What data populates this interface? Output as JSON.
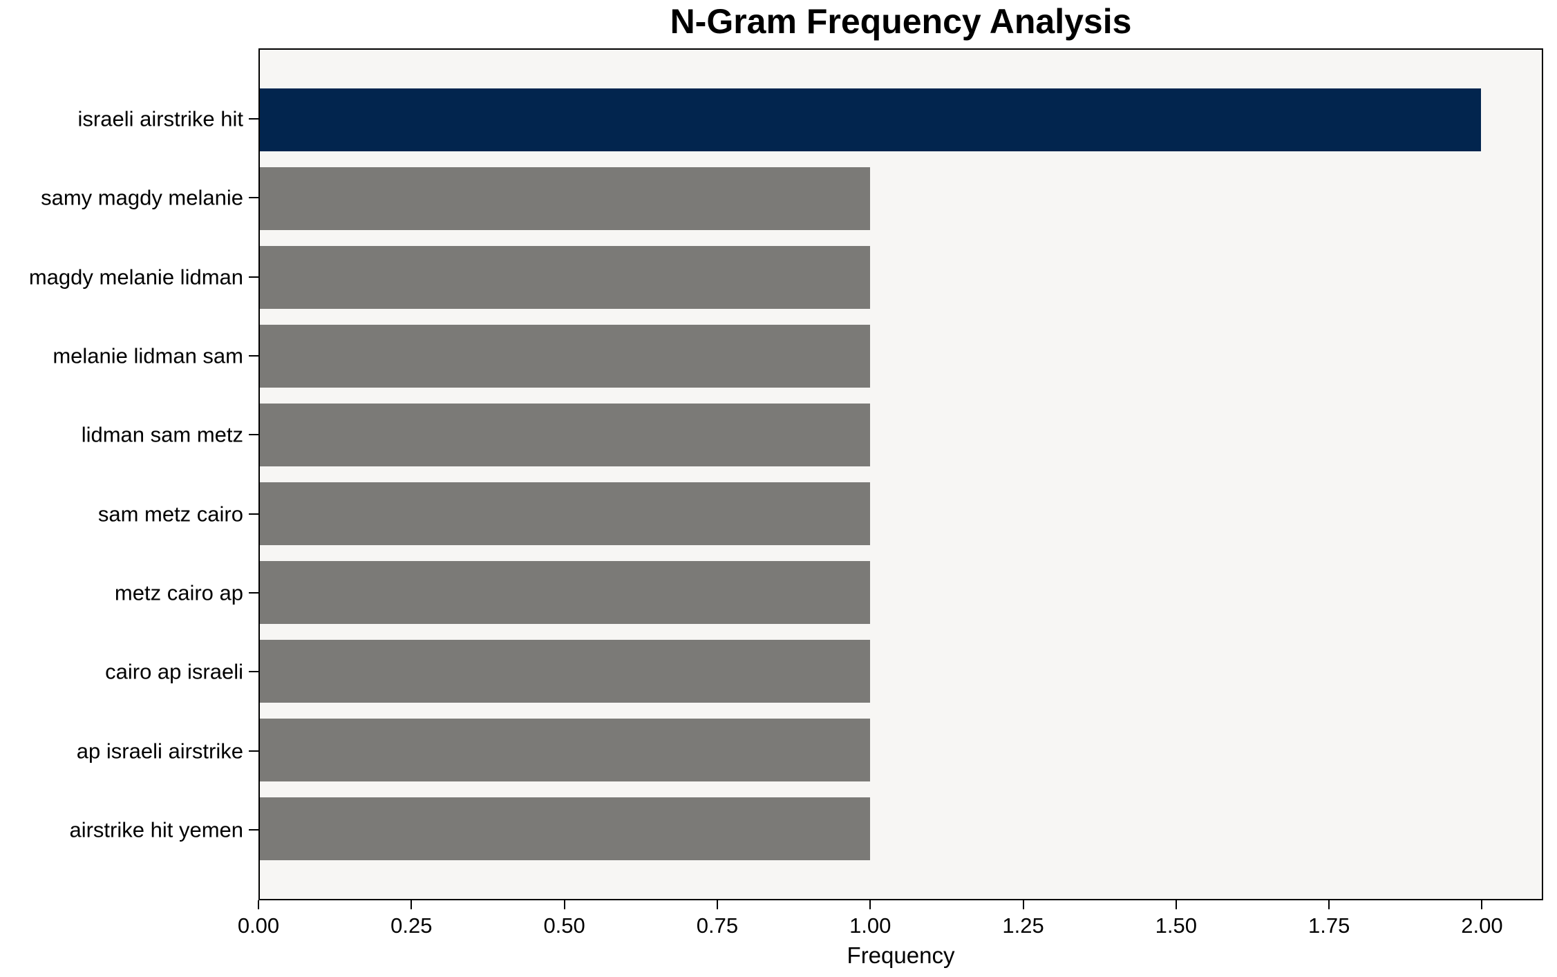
{
  "chart_data": {
    "type": "bar",
    "orientation": "horizontal",
    "title": "N-Gram Frequency Analysis",
    "xlabel": "Frequency",
    "ylabel": "",
    "categories": [
      "israeli airstrike hit",
      "samy magdy melanie",
      "magdy melanie lidman",
      "melanie lidman sam",
      "lidman sam metz",
      "sam metz cairo",
      "metz cairo ap",
      "cairo ap israeli",
      "ap israeli airstrike",
      "airstrike hit yemen"
    ],
    "values": [
      2,
      1,
      1,
      1,
      1,
      1,
      1,
      1,
      1,
      1
    ],
    "xlim": [
      0,
      2.1
    ],
    "xtick_values": [
      0,
      0.25,
      0.5,
      0.75,
      1.0,
      1.25,
      1.5,
      1.75,
      2.0
    ],
    "xtick_labels": [
      "0.00",
      "0.25",
      "0.50",
      "0.75",
      "1.00",
      "1.25",
      "1.50",
      "1.75",
      "2.00"
    ],
    "highlight_index": 0,
    "grid": false,
    "legend_position": "none",
    "colors": {
      "highlight_bar": "#02254e",
      "default_bar": "#7b7a77",
      "plot_background": "#f7f6f4",
      "axis": "#000000",
      "text": "#000000",
      "figure_background": "#ffffff"
    }
  }
}
